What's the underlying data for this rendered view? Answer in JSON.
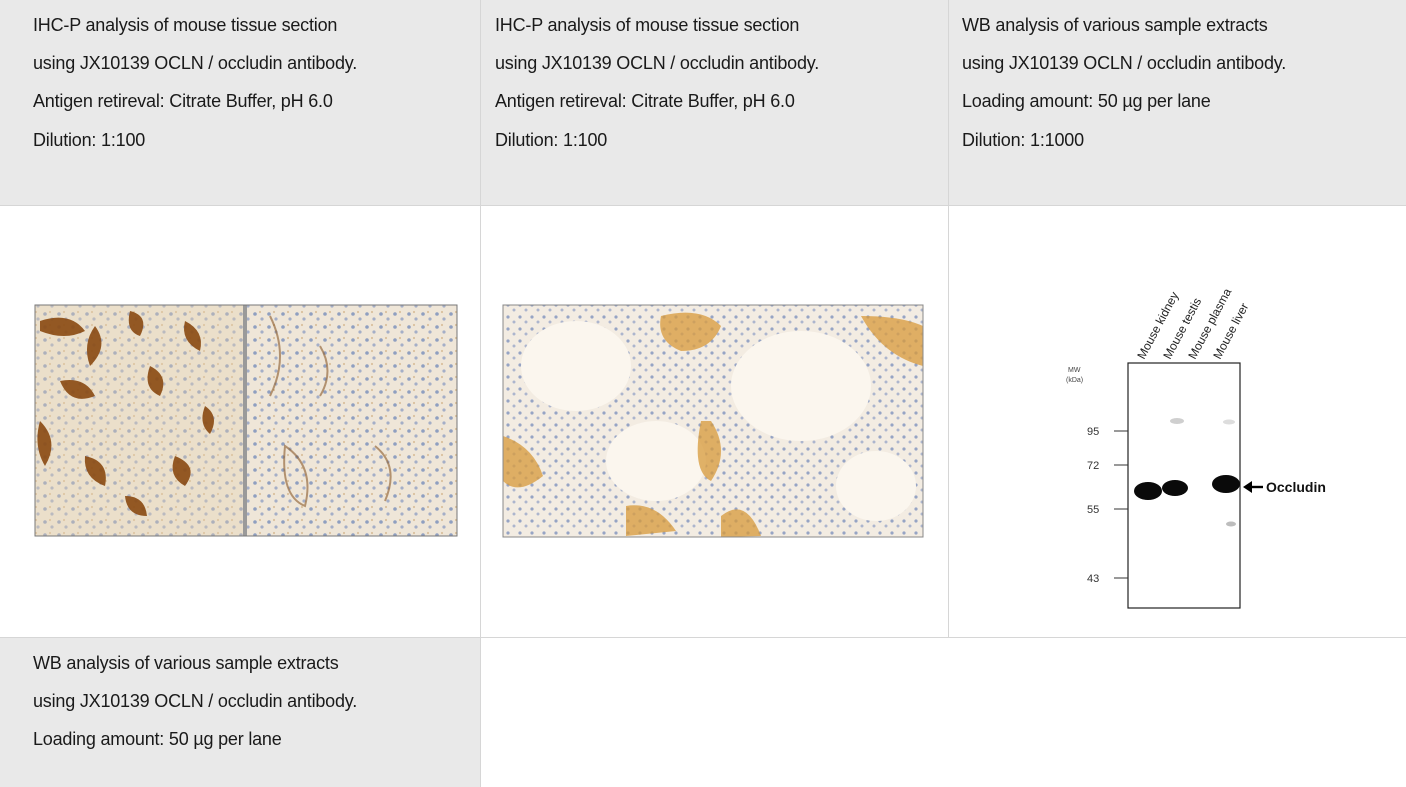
{
  "captions": [
    {
      "lines": [
        "IHC-P analysis of mouse tissue section",
        "using JX10139 OCLN / occludin antibody.",
        "Antigen retireval: Citrate Buffer, pH 6.0",
        "Dilution: 1:100"
      ]
    },
    {
      "lines": [
        "IHC-P analysis of mouse tissue section",
        "using JX10139 OCLN / occludin antibody.",
        "Antigen retireval: Citrate Buffer, pH 6.0",
        "Dilution: 1:100"
      ]
    },
    {
      "lines": [
        "WB analysis of various sample extracts",
        "using JX10139 OCLN / occludin antibody.",
        "Loading amount: 50 µg per lane",
        "Dilution: 1:1000"
      ]
    },
    {
      "lines": [
        "WB analysis of various sample extracts",
        "using JX10139 OCLN / occludin antibody.",
        "Loading amount: 50 µg per lane"
      ]
    }
  ],
  "blot": {
    "mw_label": "MW",
    "mw_unit": "(kDa)",
    "lanes": [
      "Mouse kidney",
      "Mouse testis",
      "Mouse plasma",
      "Mouse liver"
    ],
    "markers": [
      "95",
      "72",
      "55",
      "43"
    ],
    "target_label": "Occludin"
  },
  "colors": {
    "caption_bg": "#e9e9e9",
    "ihc_stain": "#b06a1c",
    "tissue_bg": "#efe6d8",
    "nuclei": "#6f86b8"
  }
}
